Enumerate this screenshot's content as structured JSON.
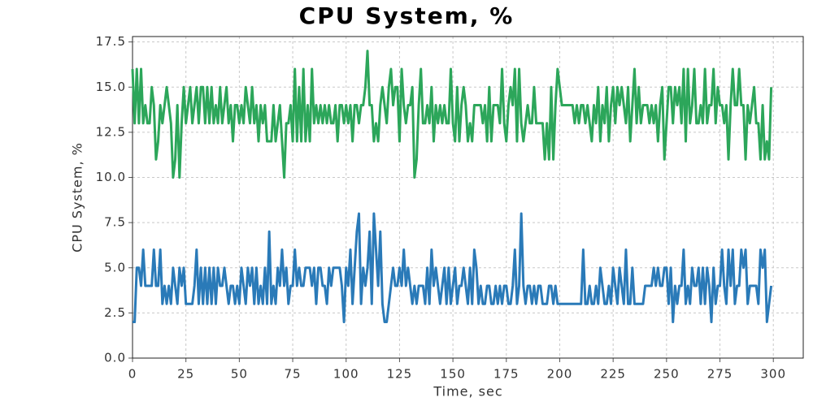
{
  "chart_data": {
    "type": "line",
    "title": "CPU System, %",
    "xlabel": "Time, sec",
    "ylabel": "CPU System, %",
    "x": [
      0,
      1,
      2,
      3,
      4,
      5,
      6,
      7,
      8,
      9,
      10,
      11,
      12,
      13,
      14,
      15,
      16,
      17,
      18,
      19,
      20,
      21,
      22,
      23,
      24,
      25,
      26,
      27,
      28,
      29,
      30,
      31,
      32,
      33,
      34,
      35,
      36,
      37,
      38,
      39,
      40,
      41,
      42,
      43,
      44,
      45,
      46,
      47,
      48,
      49,
      50,
      51,
      52,
      53,
      54,
      55,
      56,
      57,
      58,
      59,
      60,
      61,
      62,
      63,
      64,
      65,
      66,
      67,
      68,
      69,
      70,
      71,
      72,
      73,
      74,
      75,
      76,
      77,
      78,
      79,
      80,
      81,
      82,
      83,
      84,
      85,
      86,
      87,
      88,
      89,
      90,
      91,
      92,
      93,
      94,
      95,
      96,
      97,
      98,
      99,
      100,
      101,
      102,
      103,
      104,
      105,
      106,
      107,
      108,
      109,
      110,
      111,
      112,
      113,
      114,
      115,
      116,
      117,
      118,
      119,
      120,
      121,
      122,
      123,
      124,
      125,
      126,
      127,
      128,
      129,
      130,
      131,
      132,
      133,
      134,
      135,
      136,
      137,
      138,
      139,
      140,
      141,
      142,
      143,
      144,
      145,
      146,
      147,
      148,
      149,
      150,
      151,
      152,
      153,
      154,
      155,
      156,
      157,
      158,
      159,
      160,
      161,
      162,
      163,
      164,
      165,
      166,
      167,
      168,
      169,
      170,
      171,
      172,
      173,
      174,
      175,
      176,
      177,
      178,
      179,
      180,
      181,
      182,
      183,
      184,
      185,
      186,
      187,
      188,
      189,
      190,
      191,
      192,
      193,
      194,
      195,
      196,
      197,
      198,
      199,
      200,
      201,
      202,
      203,
      204,
      205,
      206,
      207,
      208,
      209,
      210,
      211,
      212,
      213,
      214,
      215,
      216,
      217,
      218,
      219,
      220,
      221,
      222,
      223,
      224,
      225,
      226,
      227,
      228,
      229,
      230,
      231,
      232,
      233,
      234,
      235,
      236,
      237,
      238,
      239,
      240,
      241,
      242,
      243,
      244,
      245,
      246,
      247,
      248,
      249,
      250,
      251,
      252,
      253,
      254,
      255,
      256,
      257,
      258,
      259,
      260,
      261,
      262,
      263,
      264,
      265,
      266,
      267,
      268,
      269,
      270,
      271,
      272,
      273,
      274,
      275,
      276,
      277,
      278,
      279,
      280,
      281,
      282,
      283,
      284,
      285,
      286,
      287,
      288,
      289,
      290,
      291,
      292,
      293,
      294,
      295,
      296,
      297,
      298,
      299
    ],
    "series": [
      {
        "color": "#2ca65a",
        "values": [
          16,
          13,
          16,
          13,
          16,
          13,
          14,
          13,
          13,
          15,
          14,
          11,
          12,
          14,
          13,
          14,
          15,
          14,
          13,
          10,
          11,
          14,
          10,
          13,
          15,
          13,
          14,
          15,
          13,
          14,
          15,
          13,
          15,
          15,
          13,
          15,
          13,
          15,
          13,
          14,
          13,
          15,
          13,
          14,
          15,
          13,
          14,
          12,
          14,
          14,
          13,
          14,
          13,
          15,
          14,
          13,
          15,
          13,
          14,
          12,
          14,
          13,
          14,
          12,
          12,
          12,
          14,
          12,
          13,
          14,
          12,
          10,
          13,
          13,
          14,
          12,
          16,
          12,
          15,
          12,
          16,
          12,
          14,
          12,
          16,
          13,
          14,
          13,
          14,
          13,
          14,
          13,
          14,
          13,
          13,
          14,
          12,
          14,
          14,
          13,
          14,
          13,
          14,
          12,
          14,
          14,
          13,
          14,
          14,
          15,
          17,
          14,
          14,
          12,
          13,
          12,
          14,
          15,
          14,
          13,
          15,
          16,
          14,
          15,
          15,
          12,
          16,
          14,
          13,
          14,
          14,
          15,
          10,
          11,
          14,
          16,
          13,
          13,
          14,
          13,
          15,
          12,
          14,
          13,
          14,
          13,
          14,
          13,
          13,
          16,
          13,
          12,
          15,
          12,
          14,
          15,
          14,
          12,
          13,
          12,
          14,
          14,
          14,
          14,
          13,
          14,
          12,
          15,
          12,
          14,
          14,
          14,
          13,
          16,
          13,
          12,
          14,
          15,
          14,
          16,
          12,
          16,
          13,
          12,
          13,
          14,
          13,
          13,
          15,
          13,
          13,
          13,
          13,
          11,
          13,
          11,
          15,
          11,
          14,
          16,
          15,
          14,
          14,
          14,
          14,
          14,
          14,
          13,
          14,
          13,
          14,
          14,
          13,
          14,
          13,
          12,
          14,
          13,
          15,
          12,
          14,
          13,
          15,
          12,
          14,
          15,
          13,
          15,
          14,
          15,
          14,
          13,
          15,
          12,
          14,
          16,
          13,
          15,
          13,
          14,
          14,
          14,
          13,
          14,
          13,
          14,
          12,
          14,
          15,
          11,
          13,
          15,
          15,
          13,
          15,
          14,
          15,
          13,
          16,
          12,
          16,
          13,
          14,
          16,
          13,
          13,
          14,
          13,
          16,
          13,
          14,
          14,
          16,
          13,
          15,
          14,
          14,
          13,
          14,
          11,
          14,
          16,
          14,
          14,
          16,
          14,
          14,
          11,
          14,
          13,
          14,
          15,
          13,
          13,
          11,
          14,
          11,
          12,
          11,
          15
        ]
      },
      {
        "color": "#2a7ab8",
        "values": [
          2,
          2,
          5,
          5,
          4,
          6,
          4,
          4,
          4,
          4,
          6,
          4,
          4,
          6,
          3,
          4,
          3,
          4,
          3,
          5,
          4,
          3,
          5,
          4,
          5,
          3,
          3,
          3,
          3,
          4,
          6,
          3,
          5,
          3,
          5,
          3,
          5,
          3,
          5,
          3,
          5,
          4,
          4,
          5,
          4,
          3,
          4,
          4,
          3,
          4,
          3,
          5,
          4,
          3,
          5,
          4,
          5,
          3,
          5,
          3,
          4,
          3,
          5,
          3,
          7,
          3,
          4,
          3,
          5,
          4,
          6,
          4,
          5,
          3,
          4,
          4,
          6,
          4,
          5,
          4,
          4,
          5,
          5,
          5,
          4,
          5,
          3,
          5,
          5,
          4,
          4,
          3,
          5,
          4,
          5,
          5,
          5,
          5,
          4,
          2,
          5,
          4,
          6,
          3,
          5,
          7,
          8,
          3,
          5,
          4,
          5,
          7,
          3,
          8,
          6,
          4,
          7,
          3,
          2,
          2,
          3,
          4,
          5,
          4,
          4,
          5,
          4,
          6,
          4,
          5,
          4,
          3,
          4,
          3,
          4,
          4,
          4,
          3,
          5,
          3,
          6,
          4,
          5,
          4,
          3,
          4,
          5,
          3,
          5,
          3,
          4,
          5,
          3,
          4,
          4,
          5,
          4,
          3,
          5,
          3,
          6,
          5,
          3,
          4,
          3,
          3,
          4,
          4,
          3,
          3,
          4,
          3,
          4,
          3,
          4,
          4,
          3,
          3,
          4,
          6,
          3,
          4,
          8,
          4,
          3,
          4,
          4,
          3,
          4,
          3,
          4,
          4,
          3,
          3,
          3,
          4,
          4,
          3,
          4,
          3,
          3,
          3,
          3,
          3,
          3,
          3,
          3,
          3,
          3,
          3,
          3,
          6,
          3,
          3,
          4,
          3,
          3,
          4,
          3,
          5,
          4,
          3,
          3,
          4,
          3,
          5,
          4,
          3,
          5,
          4,
          3,
          6,
          3,
          3,
          5,
          3,
          3,
          3,
          3,
          3,
          4,
          4,
          4,
          4,
          5,
          4,
          5,
          4,
          4,
          5,
          5,
          3,
          5,
          2,
          4,
          3,
          4,
          4,
          6,
          3,
          4,
          3,
          5,
          4,
          4,
          5,
          3,
          5,
          3,
          5,
          4,
          2,
          5,
          3,
          4,
          4,
          6,
          4,
          3,
          6,
          4,
          6,
          3,
          4,
          4,
          6,
          5,
          6,
          3,
          4,
          4,
          4,
          4,
          3,
          6,
          5,
          6,
          2,
          3,
          4
        ]
      }
    ],
    "xlim": [
      0,
      314
    ],
    "xticks": [
      0,
      25,
      50,
      75,
      100,
      125,
      150,
      175,
      200,
      225,
      250,
      275,
      300
    ],
    "ylim": [
      0,
      17.8
    ],
    "yticks": [
      {
        "value": 0,
        "label": "0.0"
      },
      {
        "value": 2.5,
        "label": "2.5"
      },
      {
        "value": 5,
        "label": "5.0"
      },
      {
        "value": 7.5,
        "label": "7.5"
      },
      {
        "value": 10,
        "label": "10.0"
      },
      {
        "value": 12.5,
        "label": "12.5"
      },
      {
        "value": 15,
        "label": "15.0"
      },
      {
        "value": 17.5,
        "label": "17.5"
      }
    ],
    "grid": true
  }
}
